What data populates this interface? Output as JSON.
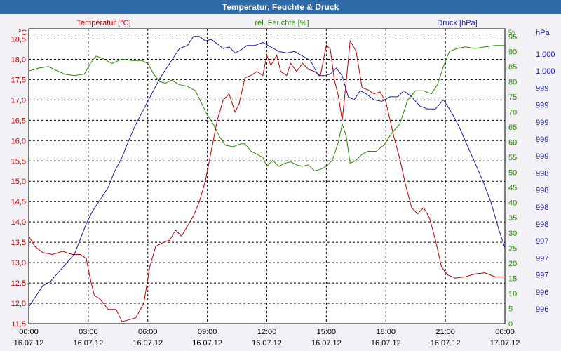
{
  "window": {
    "title": "Temperatur, Feuchte & Druck"
  },
  "colors": {
    "temperature": "#c00000",
    "humidity": "#2a8a00",
    "pressure": "#1a1aa8",
    "grid": "#000000",
    "plot_bg": "#ffffff"
  },
  "chart_data": {
    "type": "line",
    "title": "Temperatur, Feuchte & Druck",
    "x_ticks": [
      {
        "time": "00:00",
        "date": "16.07.12"
      },
      {
        "time": "03:00",
        "date": "16.07.12"
      },
      {
        "time": "06:00",
        "date": "16.07.12"
      },
      {
        "time": "09:00",
        "date": "16.07.12"
      },
      {
        "time": "12:00",
        "date": "16.07.12"
      },
      {
        "time": "15:00",
        "date": "16.07.12"
      },
      {
        "time": "18:00",
        "date": "16.07.12"
      },
      {
        "time": "21:00",
        "date": "16.07.12"
      },
      {
        "time": "00:00",
        "date": "17.07.12"
      }
    ],
    "x_range_hours": [
      0,
      24
    ],
    "grid": true,
    "axes": {
      "temperature": {
        "unit": "°C",
        "label": "Temperatur [°C]",
        "range": [
          11.5,
          18.75
        ],
        "ticks": [
          "11,5",
          "12,0",
          "12,5",
          "13,0",
          "13,5",
          "14,0",
          "14,5",
          "15,0",
          "15,5",
          "16,0",
          "16,5",
          "17,0",
          "17,5",
          "18,0",
          "18,5"
        ]
      },
      "humidity": {
        "unit": "%",
        "label": "rel. Feuchte [%]",
        "range": [
          0,
          97.5
        ],
        "ticks": [
          "0",
          "5",
          "10",
          "15",
          "20",
          "25",
          "30",
          "35",
          "40",
          "45",
          "50",
          "55",
          "60",
          "65",
          "70",
          "75",
          "80",
          "85",
          "90",
          "95"
        ]
      },
      "pressure": {
        "unit": "hPa",
        "label": "Druck [hPa]",
        "ticks": [
          "996",
          "996",
          "997",
          "997",
          "997",
          "998",
          "998",
          "998",
          "998",
          "999",
          "999",
          "999",
          "999",
          "999",
          "1.000",
          "1.000"
        ]
      }
    },
    "series": [
      {
        "name": "Temperatur [°C]",
        "axis": "temperature",
        "points": [
          [
            0,
            13.65
          ],
          [
            0.3,
            13.4
          ],
          [
            0.7,
            13.25
          ],
          [
            1.2,
            13.2
          ],
          [
            1.7,
            13.28
          ],
          [
            2.2,
            13.2
          ],
          [
            2.6,
            13.2
          ],
          [
            2.9,
            13.1
          ],
          [
            3.1,
            12.6
          ],
          [
            3.3,
            12.2
          ],
          [
            3.6,
            12.1
          ],
          [
            4.0,
            11.85
          ],
          [
            4.4,
            11.85
          ],
          [
            4.7,
            11.55
          ],
          [
            5.1,
            11.6
          ],
          [
            5.4,
            11.65
          ],
          [
            5.8,
            12.0
          ],
          [
            6.1,
            12.9
          ],
          [
            6.4,
            13.4
          ],
          [
            6.8,
            13.5
          ],
          [
            7.1,
            13.55
          ],
          [
            7.4,
            13.8
          ],
          [
            7.7,
            13.65
          ],
          [
            8.0,
            13.9
          ],
          [
            8.3,
            14.15
          ],
          [
            8.6,
            14.5
          ],
          [
            8.9,
            15.0
          ],
          [
            9.2,
            15.75
          ],
          [
            9.5,
            16.5
          ],
          [
            9.8,
            17.0
          ],
          [
            10.1,
            17.15
          ],
          [
            10.4,
            16.7
          ],
          [
            10.6,
            16.9
          ],
          [
            10.9,
            17.55
          ],
          [
            11.2,
            17.6
          ],
          [
            11.5,
            17.7
          ],
          [
            11.8,
            17.6
          ],
          [
            12.0,
            18.1
          ],
          [
            12.2,
            17.85
          ],
          [
            12.5,
            18.1
          ],
          [
            12.7,
            17.7
          ],
          [
            13.0,
            17.6
          ],
          [
            13.2,
            17.9
          ],
          [
            13.5,
            17.7
          ],
          [
            13.8,
            17.9
          ],
          [
            14.1,
            17.75
          ],
          [
            14.4,
            17.7
          ],
          [
            14.7,
            17.6
          ],
          [
            15.0,
            18.35
          ],
          [
            15.2,
            18.25
          ],
          [
            15.4,
            17.5
          ],
          [
            15.6,
            17.1
          ],
          [
            15.8,
            16.5
          ],
          [
            16.0,
            17.45
          ],
          [
            16.2,
            18.45
          ],
          [
            16.5,
            18.2
          ],
          [
            16.8,
            17.3
          ],
          [
            17.1,
            17.25
          ],
          [
            17.4,
            17.15
          ],
          [
            17.7,
            17.2
          ],
          [
            18.0,
            16.95
          ],
          [
            18.4,
            16.1
          ],
          [
            18.7,
            15.55
          ],
          [
            19.0,
            14.9
          ],
          [
            19.3,
            14.35
          ],
          [
            19.6,
            14.2
          ],
          [
            19.9,
            14.35
          ],
          [
            20.2,
            14.1
          ],
          [
            20.5,
            13.55
          ],
          [
            20.8,
            12.9
          ],
          [
            21.1,
            12.7
          ],
          [
            21.5,
            12.62
          ],
          [
            22.0,
            12.65
          ],
          [
            22.5,
            12.72
          ],
          [
            23.0,
            12.75
          ],
          [
            23.5,
            12.65
          ],
          [
            24.0,
            12.65
          ]
        ]
      },
      {
        "name": "rel. Feuchte [%]",
        "axis": "humidity",
        "points": [
          [
            0,
            83.5
          ],
          [
            0.5,
            84.5
          ],
          [
            1.0,
            85
          ],
          [
            1.3,
            84
          ],
          [
            1.8,
            82.5
          ],
          [
            2.3,
            82
          ],
          [
            2.8,
            82.5
          ],
          [
            3.1,
            86
          ],
          [
            3.4,
            88.5
          ],
          [
            3.8,
            87.5
          ],
          [
            4.2,
            86
          ],
          [
            4.7,
            87.5
          ],
          [
            5.2,
            87
          ],
          [
            5.7,
            87
          ],
          [
            6.0,
            86
          ],
          [
            6.3,
            82.5
          ],
          [
            6.6,
            80
          ],
          [
            6.9,
            79.5
          ],
          [
            7.2,
            80.5
          ],
          [
            7.6,
            79
          ],
          [
            8.0,
            78.5
          ],
          [
            8.4,
            77
          ],
          [
            8.7,
            73
          ],
          [
            9.0,
            69
          ],
          [
            9.3,
            66
          ],
          [
            9.6,
            62
          ],
          [
            9.9,
            59
          ],
          [
            10.3,
            58.5
          ],
          [
            10.7,
            59.5
          ],
          [
            10.9,
            59.5
          ],
          [
            11.2,
            57
          ],
          [
            11.5,
            56
          ],
          [
            11.8,
            55
          ],
          [
            12.0,
            52
          ],
          [
            12.3,
            54
          ],
          [
            12.6,
            52
          ],
          [
            12.9,
            53
          ],
          [
            13.2,
            53.5
          ],
          [
            13.5,
            52.5
          ],
          [
            13.8,
            52
          ],
          [
            14.1,
            52.5
          ],
          [
            14.4,
            50.5
          ],
          [
            14.7,
            51
          ],
          [
            15.0,
            52
          ],
          [
            15.3,
            54
          ],
          [
            15.6,
            60
          ],
          [
            15.8,
            66
          ],
          [
            16.0,
            62
          ],
          [
            16.2,
            53
          ],
          [
            16.5,
            54
          ],
          [
            16.8,
            56
          ],
          [
            17.1,
            57
          ],
          [
            17.5,
            57
          ],
          [
            17.9,
            59
          ],
          [
            18.3,
            63
          ],
          [
            18.7,
            66
          ],
          [
            19.1,
            74
          ],
          [
            19.5,
            77
          ],
          [
            19.9,
            77
          ],
          [
            20.3,
            76
          ],
          [
            20.6,
            79
          ],
          [
            20.9,
            85
          ],
          [
            21.2,
            90
          ],
          [
            21.6,
            91
          ],
          [
            22.0,
            91.5
          ],
          [
            22.5,
            91
          ],
          [
            23.0,
            91.5
          ],
          [
            23.5,
            92
          ],
          [
            24.0,
            92
          ]
        ]
      },
      {
        "name": "Druck [hPa]",
        "axis": "pressure",
        "points": [
          [
            0,
            5.5
          ],
          [
            0.3,
            8.5
          ],
          [
            0.7,
            12.5
          ],
          [
            1.1,
            14
          ],
          [
            1.5,
            17
          ],
          [
            1.9,
            20
          ],
          [
            2.3,
            23
          ],
          [
            2.6,
            28
          ],
          [
            2.9,
            33
          ],
          [
            3.2,
            37
          ],
          [
            3.6,
            41
          ],
          [
            4.0,
            45
          ],
          [
            4.3,
            50
          ],
          [
            4.7,
            55
          ],
          [
            5.0,
            60
          ],
          [
            5.4,
            66
          ],
          [
            5.8,
            71
          ],
          [
            6.2,
            76
          ],
          [
            6.6,
            81
          ],
          [
            7.0,
            85
          ],
          [
            7.3,
            88
          ],
          [
            7.6,
            91
          ],
          [
            8.0,
            92
          ],
          [
            8.3,
            95
          ],
          [
            8.6,
            95
          ],
          [
            8.9,
            93.5
          ],
          [
            9.2,
            94
          ],
          [
            9.5,
            92.5
          ],
          [
            9.8,
            91
          ],
          [
            10.1,
            91.5
          ],
          [
            10.4,
            89.5
          ],
          [
            10.7,
            90.5
          ],
          [
            11.0,
            92
          ],
          [
            11.4,
            92
          ],
          [
            11.8,
            93
          ],
          [
            12.2,
            91.5
          ],
          [
            12.6,
            90
          ],
          [
            13.0,
            89.5
          ],
          [
            13.4,
            90
          ],
          [
            13.8,
            88.5
          ],
          [
            14.2,
            87
          ],
          [
            14.6,
            82
          ],
          [
            14.9,
            82
          ],
          [
            15.2,
            82.5
          ],
          [
            15.5,
            84.5
          ],
          [
            15.8,
            82
          ],
          [
            16.1,
            75
          ],
          [
            16.4,
            74
          ],
          [
            16.7,
            77
          ],
          [
            17.0,
            76
          ],
          [
            17.4,
            74
          ],
          [
            17.8,
            73.5
          ],
          [
            18.2,
            75
          ],
          [
            18.6,
            75
          ],
          [
            18.9,
            77
          ],
          [
            19.3,
            75
          ],
          [
            19.7,
            72
          ],
          [
            20.1,
            71
          ],
          [
            20.5,
            71
          ],
          [
            20.9,
            74
          ],
          [
            21.3,
            70
          ],
          [
            21.7,
            65
          ],
          [
            22.1,
            59
          ],
          [
            22.5,
            53
          ],
          [
            22.9,
            47
          ],
          [
            23.3,
            40
          ],
          [
            23.7,
            31
          ],
          [
            24.0,
            25
          ]
        ]
      }
    ]
  }
}
